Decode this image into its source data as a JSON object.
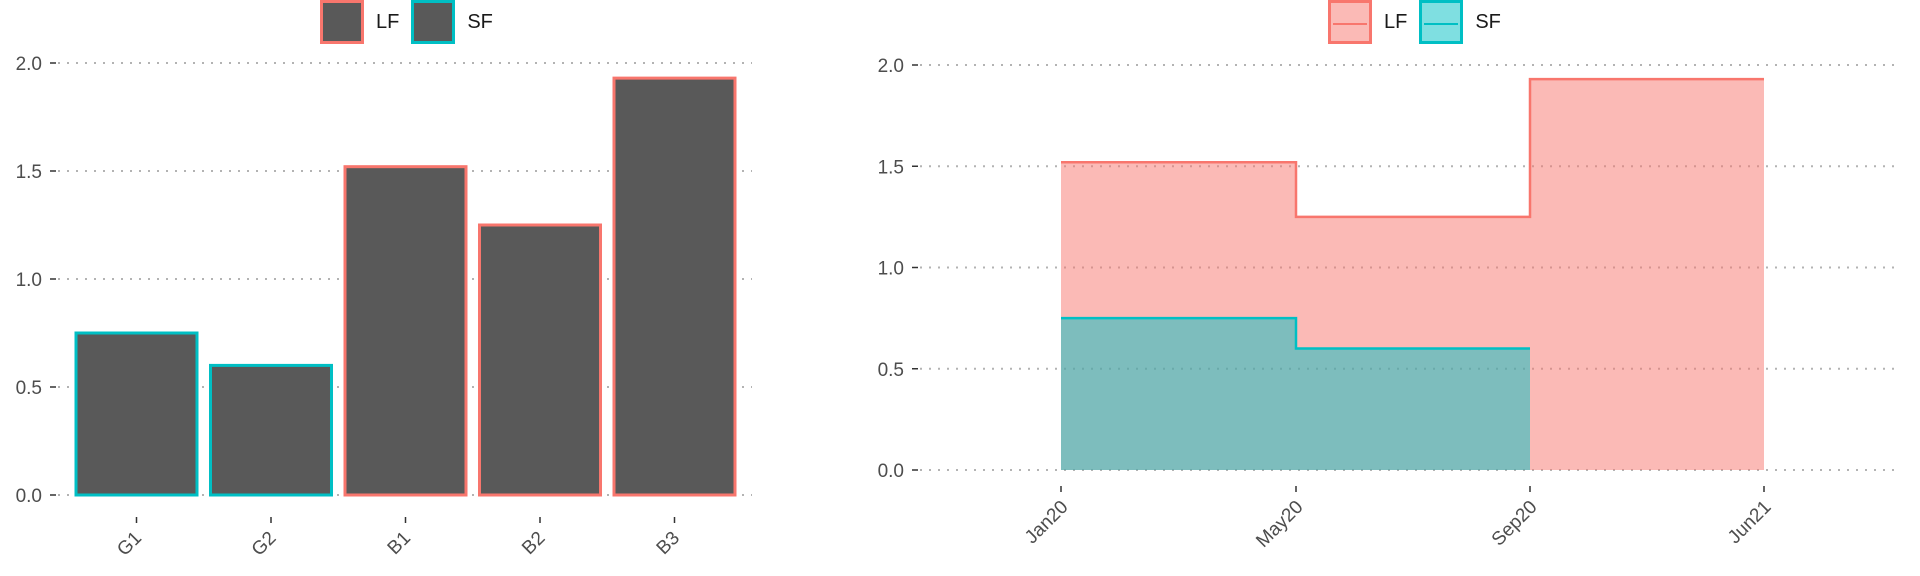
{
  "legend": {
    "items": [
      "LF",
      "SF"
    ]
  },
  "colors": {
    "LF": "#F8766D",
    "SF": "#00BFC4",
    "bar_fill": "#595959",
    "grid": "#b3b3b3"
  },
  "chart_data": [
    {
      "type": "bar",
      "categories": [
        "G1",
        "G2",
        "B1",
        "B2",
        "B3"
      ],
      "values": [
        0.75,
        0.6,
        1.52,
        1.25,
        1.93
      ],
      "outline_series": [
        "SF",
        "SF",
        "LF",
        "LF",
        "LF"
      ],
      "series_names": [
        "LF",
        "SF"
      ],
      "ylim": [
        0,
        2.0
      ],
      "yticks": [
        "0.0",
        "0.5",
        "1.0",
        "1.5",
        "2.0"
      ],
      "grid": "horizontal dotted",
      "legend_position": "top"
    },
    {
      "type": "area",
      "step": true,
      "x_ticks": [
        "Jan20",
        "May20",
        "Sep20",
        "Jun21"
      ],
      "series": [
        {
          "name": "LF",
          "points": [
            [
              "Jan20",
              1.52
            ],
            [
              "May20",
              1.25
            ],
            [
              "Sep20",
              1.93
            ],
            [
              "Jun21",
              1.93
            ]
          ]
        },
        {
          "name": "SF",
          "points": [
            [
              "Jan20",
              0.75
            ],
            [
              "May20",
              0.6
            ],
            [
              "Sep20",
              0.6
            ]
          ]
        }
      ],
      "ylim": [
        0,
        2.0
      ],
      "yticks": [
        "0.0",
        "0.5",
        "1.0",
        "1.5",
        "2.0"
      ],
      "grid": "horizontal dotted",
      "legend_position": "top"
    }
  ]
}
